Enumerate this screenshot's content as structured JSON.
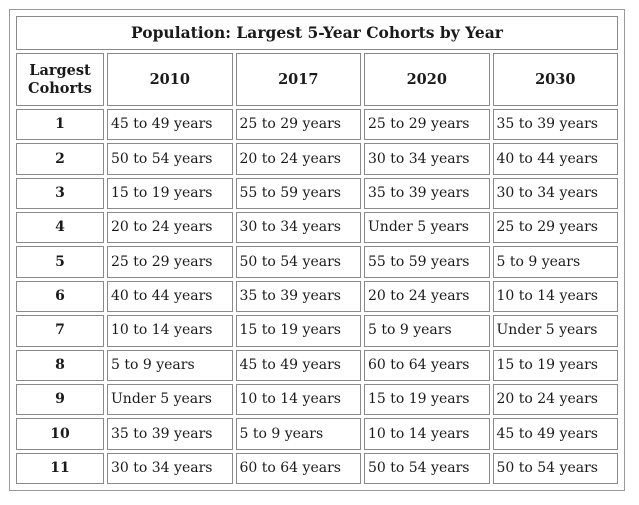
{
  "title": "Population: Largest 5-Year Cohorts by Year",
  "header": {
    "rank_label_line1": "Largest",
    "rank_label_line2": "Cohorts",
    "years": [
      "2010",
      "2017",
      "2020",
      "2030"
    ]
  },
  "rows": [
    {
      "rank": "1",
      "cells": [
        "45 to 49 years",
        "25 to 29 years",
        "25 to 29 years",
        "35 to 39 years"
      ]
    },
    {
      "rank": "2",
      "cells": [
        "50 to 54 years",
        "20 to 24 years",
        "30 to 34 years",
        "40 to 44 years"
      ]
    },
    {
      "rank": "3",
      "cells": [
        "15 to 19 years",
        "55 to 59 years",
        "35 to 39 years",
        "30 to 34 years"
      ]
    },
    {
      "rank": "4",
      "cells": [
        "20 to 24 years",
        "30 to 34 years",
        "Under 5 years",
        "25 to 29 years"
      ]
    },
    {
      "rank": "5",
      "cells": [
        "25 to 29 years",
        "50 to 54 years",
        "55 to 59 years",
        "5 to 9 years"
      ]
    },
    {
      "rank": "6",
      "cells": [
        "40 to 44 years",
        "35 to 39 years",
        "20 to 24 years",
        "10 to 14 years"
      ]
    },
    {
      "rank": "7",
      "cells": [
        "10 to 14 years",
        "15 to 19 years",
        "5 to 9 years",
        "Under 5 years"
      ]
    },
    {
      "rank": "8",
      "cells": [
        "5 to 9 years",
        "45 to 49 years",
        "60 to 64 years",
        "15 to 19 years"
      ]
    },
    {
      "rank": "9",
      "cells": [
        "Under 5 years",
        "10 to 14 years",
        "15 to 19 years",
        "20 to 24 years"
      ]
    },
    {
      "rank": "10",
      "cells": [
        "35 to 39 years",
        "5 to 9 years",
        "10 to 14 years",
        "45 to 49 years"
      ]
    },
    {
      "rank": "11",
      "cells": [
        "30 to 34 years",
        "60 to 64 years",
        "50 to 54 years",
        "50 to 54 years"
      ]
    }
  ]
}
